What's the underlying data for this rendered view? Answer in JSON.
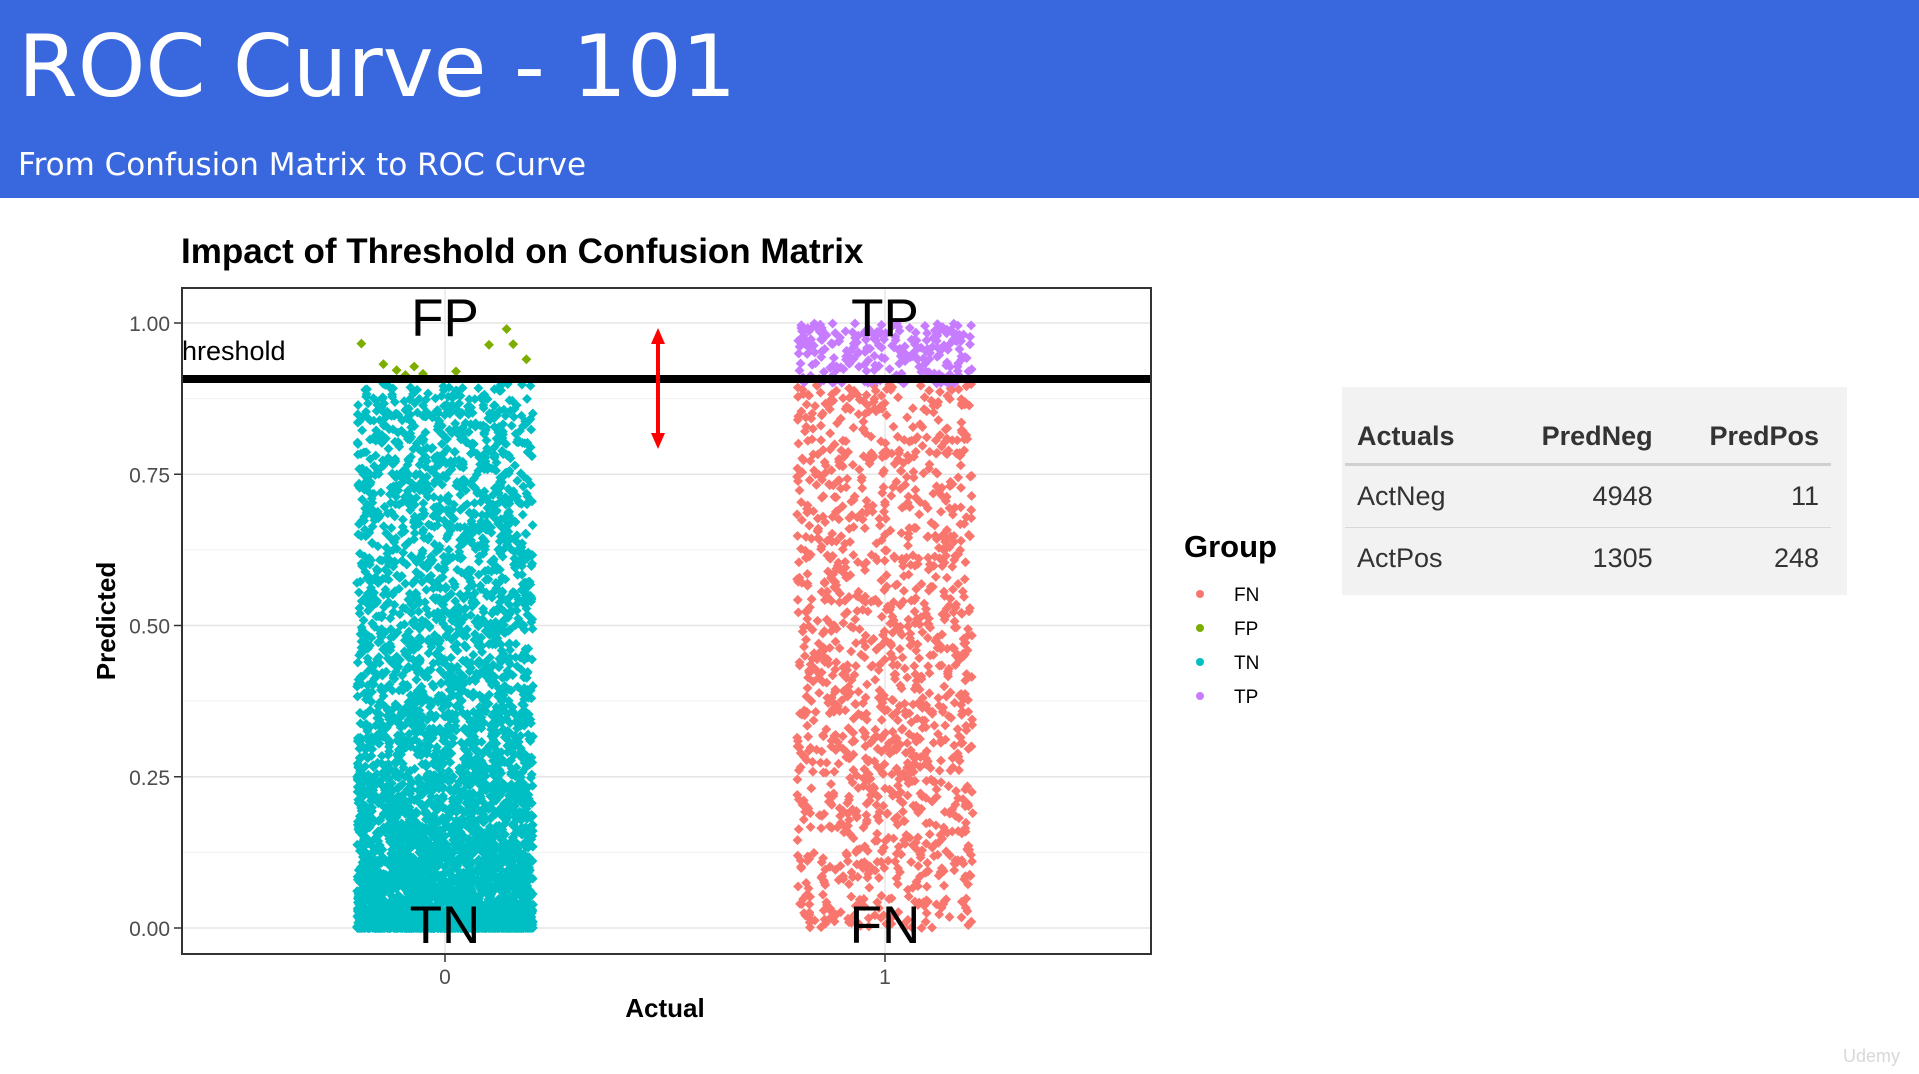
{
  "slide": {
    "title": "ROC Curve - 101",
    "subtitle": "From Confusion Matrix to ROC Curve"
  },
  "chart_data": {
    "type": "scatter",
    "title": "Impact of Threshold on Confusion Matrix",
    "xlabel": "Actual",
    "ylabel": "Predicted",
    "x_categories": [
      "0",
      "1"
    ],
    "y_ticks": [
      "0.00",
      "0.25",
      "0.50",
      "0.75",
      "1.00"
    ],
    "ylim": [
      0,
      1
    ],
    "threshold": 0.9,
    "threshold_label": "hreshold",
    "quadrant_labels": {
      "FP": "FP",
      "TP": "TP",
      "TN": "TN",
      "FN": "FN"
    },
    "legend": {
      "title": "Group",
      "position": "right",
      "entries": [
        {
          "label": "FN",
          "color": "#F8766D"
        },
        {
          "label": "FP",
          "color": "#7CAE00"
        },
        {
          "label": "TN",
          "color": "#00BFC4"
        },
        {
          "label": "TP",
          "color": "#C77CFF"
        }
      ]
    },
    "series": [
      {
        "name": "TN",
        "actual": "0",
        "count": 4948,
        "y_range": [
          0,
          0.9
        ]
      },
      {
        "name": "FP",
        "actual": "0",
        "count": 11,
        "y_range": [
          0.9,
          1
        ]
      },
      {
        "name": "FN",
        "actual": "1",
        "count": 1305,
        "y_range": [
          0,
          0.9
        ]
      },
      {
        "name": "TP",
        "actual": "1",
        "count": 248,
        "y_range": [
          0.9,
          1
        ]
      }
    ],
    "fp_points": [
      [
        -0.38,
        0.966
      ],
      [
        -0.28,
        0.932
      ],
      [
        -0.18,
        0.914
      ],
      [
        -0.14,
        0.928
      ],
      [
        -0.1,
        0.916
      ],
      [
        0.05,
        0.92
      ],
      [
        0.2,
        0.964
      ],
      [
        0.28,
        0.99
      ],
      [
        0.31,
        0.965
      ],
      [
        0.37,
        0.94
      ],
      [
        -0.22,
        0.922
      ]
    ],
    "grid": true,
    "annotation": "red double-headed arrow between the groups, spanning the threshold up to 1.00"
  },
  "confusion_table": {
    "headers": [
      "Actuals",
      "PredNeg",
      "PredPos"
    ],
    "rows": [
      [
        "ActNeg",
        "4948",
        "11"
      ],
      [
        "ActPos",
        "1305",
        "248"
      ]
    ]
  },
  "watermark": "Udemy"
}
